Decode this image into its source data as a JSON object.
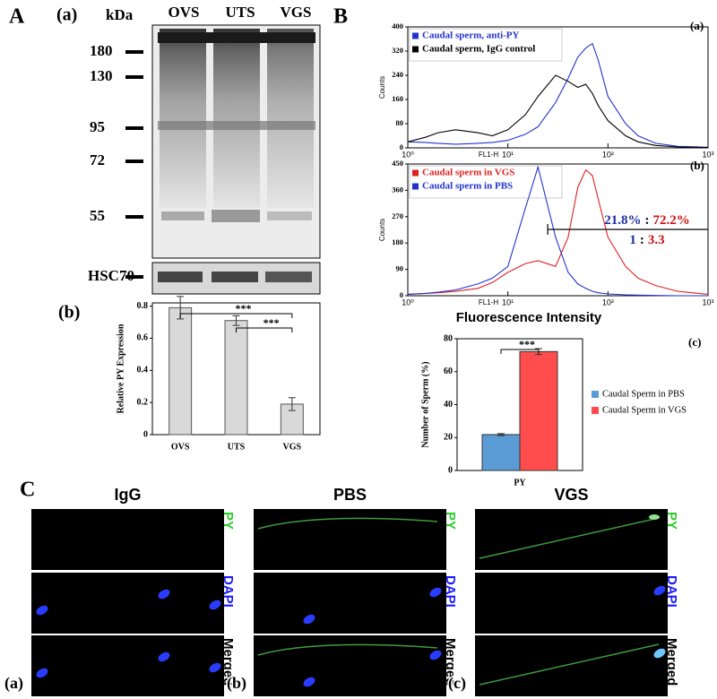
{
  "panel_labels": {
    "a": "A",
    "b": "B",
    "c": "C"
  },
  "blot": {
    "label": "(a)",
    "unit": "kDa",
    "lanes": [
      "OVS",
      "UTS",
      "VGS"
    ],
    "markers": [
      "180",
      "130",
      "95",
      "72",
      "55"
    ],
    "loading_control": "HSC70"
  },
  "flow_xlabel": "Fluorescence Intensity",
  "chart_data": [
    {
      "type": "bar",
      "label": "(b)",
      "ylabel": "Relative PY Expression",
      "categories": [
        "OVS",
        "UTS",
        "VGS"
      ],
      "values": [
        0.79,
        0.71,
        0.19
      ],
      "errors": [
        0.07,
        0.03,
        0.04
      ],
      "color": "#d9d9d9",
      "ylim": [
        0,
        0.82
      ],
      "yticks": [
        0,
        0.2,
        0.4,
        0.6,
        0.8
      ],
      "significance": [
        {
          "between": [
            0,
            2
          ],
          "label": "***"
        },
        {
          "between": [
            1,
            2
          ],
          "label": "***"
        }
      ]
    },
    {
      "type": "line",
      "label": "(a)",
      "xlabel": "FL1-H",
      "ylabel": "Counts",
      "xlog": true,
      "x": [
        1,
        1.5,
        2,
        3,
        5,
        7,
        10,
        15,
        20,
        30,
        40,
        50,
        60,
        70,
        80,
        100,
        150,
        200,
        300,
        500,
        1000
      ],
      "series": [
        {
          "name": "Caudal sperm, anti-PY",
          "color": "#2233cc",
          "values": [
            20,
            18,
            15,
            12,
            15,
            18,
            25,
            45,
            70,
            150,
            230,
            300,
            330,
            345,
            290,
            170,
            80,
            40,
            15,
            5,
            2
          ]
        },
        {
          "name": "Caudal sperm, IgG control",
          "color": "#000000",
          "values": [
            20,
            35,
            50,
            60,
            50,
            40,
            60,
            110,
            170,
            240,
            220,
            200,
            210,
            180,
            140,
            90,
            40,
            20,
            8,
            3,
            1
          ]
        }
      ],
      "xlim": [
        1,
        1000
      ],
      "xticks": [
        {
          "value": 1,
          "label": "10⁰"
        },
        {
          "value": 10,
          "label": "10¹"
        },
        {
          "value": 100,
          "label": "10²"
        },
        {
          "value": 1000,
          "label": "10³"
        }
      ],
      "ylim": [
        0,
        400
      ],
      "yticks": [
        0,
        80,
        160,
        240,
        320,
        400
      ]
    },
    {
      "type": "line",
      "label": "(b)",
      "xlabel": "FL1-H",
      "ylabel": "Counts",
      "xlog": true,
      "x": [
        1,
        1.5,
        2,
        3,
        5,
        7,
        10,
        15,
        20,
        30,
        40,
        50,
        60,
        70,
        80,
        100,
        150,
        200,
        300,
        500,
        1000
      ],
      "series": [
        {
          "name": "Caudal sperm in VGS",
          "color": "#dd2222",
          "values": [
            5,
            8,
            10,
            15,
            25,
            45,
            80,
            110,
            120,
            100,
            200,
            370,
            430,
            410,
            330,
            200,
            100,
            60,
            35,
            15,
            5
          ]
        },
        {
          "name": "Caudal sperm in PBS",
          "color": "#2233cc",
          "values": [
            5,
            8,
            12,
            20,
            40,
            60,
            100,
            300,
            440,
            200,
            80,
            40,
            25,
            15,
            10,
            6,
            3,
            2,
            1,
            0,
            0
          ]
        }
      ],
      "xlim": [
        1,
        1000
      ],
      "xticks": [
        {
          "value": 1,
          "label": "10⁰"
        },
        {
          "value": 10,
          "label": "10¹"
        },
        {
          "value": 100,
          "label": "10²"
        },
        {
          "value": 1000,
          "label": "10³"
        }
      ],
      "ylim": [
        0,
        450
      ],
      "yticks": [
        0,
        90,
        180,
        270,
        360,
        450
      ],
      "annotations": [
        {
          "parts": [
            {
              "text": "21.8%",
              "color": "#1a2fa0"
            },
            {
              "text": ":",
              "color": "#000000"
            },
            {
              "text": "72.2%",
              "color": "#cc1111"
            }
          ]
        },
        {
          "parts": [
            {
              "text": "1",
              "color": "#1a2fa0"
            },
            {
              "text": ":",
              "color": "#000000"
            },
            {
              "text": "3.3",
              "color": "#cc1111"
            }
          ]
        }
      ]
    },
    {
      "type": "bar",
      "label": "(c)",
      "ylabel": "Number of Sperm (%)",
      "categories": [
        "PY"
      ],
      "series": [
        {
          "name": "Caudal Sperm in PBS",
          "color": "#5b9bd5",
          "values": [
            21.8
          ],
          "errors": [
            0.6
          ]
        },
        {
          "name": "Caudal Sperm in VGS",
          "color": "#ff4d4d",
          "values": [
            72.2
          ],
          "errors": [
            1.8
          ]
        }
      ],
      "ylim": [
        0,
        80
      ],
      "yticks": [
        0,
        20,
        40,
        60,
        80
      ],
      "legend": "right",
      "significance": [
        {
          "between": [
            0,
            1
          ],
          "label": "***"
        }
      ]
    }
  ],
  "microscopy": {
    "columns": [
      "IgG",
      "PBS",
      "VGS"
    ],
    "rows": [
      {
        "label": "PY",
        "color": "#2ecc2e"
      },
      {
        "label": "DAPI",
        "color": "#1a1aff"
      },
      {
        "label": "Merged",
        "color": "#000000"
      }
    ],
    "panel_labels": [
      "(a)",
      "(b)",
      "(c)"
    ]
  }
}
